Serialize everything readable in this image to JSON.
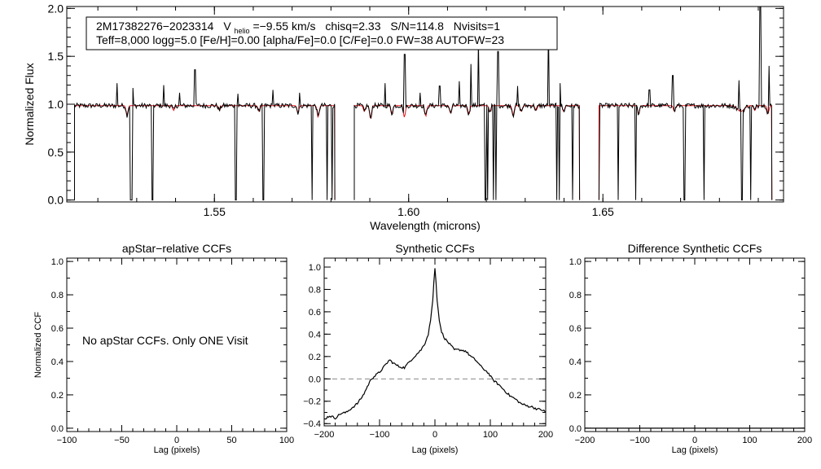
{
  "chart_data": [
    {
      "id": "spectrum",
      "type": "line",
      "title": "",
      "xlabel": "Wavelength (microns)",
      "ylabel": "Normalized Flux",
      "xlim": [
        1.512,
        1.6965
      ],
      "ylim": [
        -0.02,
        2.02
      ],
      "xticks": [
        1.55,
        1.6,
        1.65
      ],
      "xtick_labels": [
        "1.55",
        "1.60",
        "1.65"
      ],
      "yticks": [
        0.0,
        0.5,
        1.0,
        1.5,
        2.0
      ],
      "ytick_labels": [
        "0.0",
        "0.5",
        "1.0",
        "1.5",
        "2.0"
      ],
      "legend_box": {
        "line1": {
          "id": "2M17382276−2023314",
          "vhelio_prefix": "V",
          "vhelio_sub": "helio",
          "vhelio_value": "=−9.55 km/s",
          "chisq": "chisq=2.33",
          "snr": "S/N=114.8",
          "nvisits": "Nvisits=1"
        },
        "line2": "Teff=8,000 logg=5.0 [Fe/H]=0.00 [alpha/Fe]=0.0 [C/Fe]=0.0 FW=38 AUTOFW=23"
      },
      "chips": [
        [
          1.514,
          1.581
        ],
        [
          1.586,
          1.644
        ],
        [
          1.649,
          1.6935
        ]
      ],
      "spikes": [
        [
          1.525,
          1.22
        ],
        [
          1.529,
          1.17
        ],
        [
          1.537,
          1.2
        ],
        [
          1.541,
          1.12
        ],
        [
          1.545,
          1.36
        ],
        [
          1.556,
          1.11
        ],
        [
          1.565,
          1.15
        ],
        [
          1.572,
          1.12
        ],
        [
          1.594,
          1.22
        ],
        [
          1.599,
          1.52
        ],
        [
          1.603,
          1.12
        ],
        [
          1.608,
          1.19
        ],
        [
          1.613,
          1.24
        ],
        [
          1.616,
          1.42
        ],
        [
          1.618,
          1.68
        ],
        [
          1.623,
          1.55
        ],
        [
          1.628,
          1.19
        ],
        [
          1.636,
          1.82
        ],
        [
          1.639,
          1.22
        ],
        [
          1.662,
          1.15
        ],
        [
          1.668,
          1.3
        ],
        [
          1.676,
          1.15
        ],
        [
          1.685,
          1.25
        ],
        [
          1.6905,
          2.02
        ],
        [
          1.6928,
          1.4
        ]
      ],
      "drops": [
        1.5285,
        1.5287,
        1.534,
        1.5342,
        1.5555,
        1.5625,
        1.5627,
        1.5752,
        1.579,
        1.5803,
        1.6198,
        1.6203,
        1.6218,
        1.6224,
        1.6382,
        1.6387,
        1.6422,
        1.6475,
        1.649,
        1.654,
        1.6585,
        1.671,
        1.676,
        1.6858,
        1.688
      ],
      "absorptions": [
        [
          1.5275,
          0.1
        ],
        [
          1.5395,
          0.05
        ],
        [
          1.5513,
          0.05
        ],
        [
          1.5615,
          0.06
        ],
        [
          1.5715,
          0.07
        ],
        [
          1.5767,
          0.12
        ],
        [
          1.5886,
          0.06
        ],
        [
          1.5902,
          0.14
        ],
        [
          1.5957,
          0.08
        ],
        [
          1.5989,
          0.12
        ],
        [
          1.6044,
          0.11
        ],
        [
          1.6108,
          0.08
        ],
        [
          1.6155,
          0.09
        ],
        [
          1.6209,
          0.06
        ],
        [
          1.6269,
          0.1
        ],
        [
          1.629,
          0.06
        ],
        [
          1.6328,
          0.05
        ],
        [
          1.6399,
          0.06
        ],
        [
          1.6592,
          0.08
        ],
        [
          1.6684,
          0.06
        ],
        [
          1.6891,
          0.05
        ],
        [
          1.6925,
          0.08
        ]
      ]
    },
    {
      "id": "apstar_ccf",
      "type": "line",
      "title": "apStar−relative CCFs",
      "xlabel": "Lag (pixels)",
      "ylabel": "Normalized CCF",
      "xlim": [
        -100,
        100
      ],
      "ylim": [
        -0.02,
        1.02
      ],
      "xticks": [
        -100,
        -50,
        0,
        50,
        100
      ],
      "xtick_labels": [
        "−100",
        "−50",
        "0",
        "50",
        "100"
      ],
      "yticks": [
        0.0,
        0.2,
        0.4,
        0.6,
        0.8,
        1.0
      ],
      "ytick_labels": [
        "0.0",
        "0.2",
        "0.4",
        "0.6",
        "0.8",
        "1.0"
      ],
      "annotation": "No apStar CCFs.  Only ONE Visit",
      "series": []
    },
    {
      "id": "synthetic_ccf",
      "type": "line",
      "title": "Synthetic CCFs",
      "xlabel": "Lag (pixels)",
      "ylabel": "",
      "xlim": [
        -200,
        200
      ],
      "ylim": [
        -0.42,
        1.08
      ],
      "xticks": [
        -200,
        -100,
        0,
        100,
        200
      ],
      "xtick_labels": [
        "−200",
        "−100",
        "0",
        "100",
        "200"
      ],
      "yticks": [
        -0.4,
        -0.2,
        0.0,
        0.2,
        0.4,
        0.6,
        0.8,
        1.0
      ],
      "ytick_labels": [
        "−0.4",
        "−0.2",
        "0.0",
        "0.2",
        "0.4",
        "0.6",
        "0.8",
        "1.0"
      ],
      "reference_line_y": 0.0,
      "series": [
        {
          "name": "CCF",
          "x": [
            -200,
            -190,
            -180,
            -170,
            -160,
            -150,
            -140,
            -130,
            -120,
            -115,
            -110,
            -100,
            -90,
            -82,
            -75,
            -65,
            -55,
            -45,
            -35,
            -25,
            -18,
            -12,
            -8,
            -4,
            -2,
            0,
            2,
            4,
            8,
            12,
            18,
            25,
            35,
            45,
            55,
            65,
            75,
            85,
            95,
            105,
            115,
            125,
            135,
            145,
            155,
            165,
            175,
            185,
            195,
            200
          ],
          "y": [
            -0.36,
            -0.33,
            -0.35,
            -0.31,
            -0.3,
            -0.26,
            -0.22,
            -0.15,
            -0.05,
            0.0,
            0.02,
            0.06,
            0.12,
            0.17,
            0.14,
            0.11,
            0.1,
            0.16,
            0.21,
            0.26,
            0.32,
            0.4,
            0.52,
            0.7,
            0.86,
            0.99,
            0.86,
            0.7,
            0.52,
            0.42,
            0.36,
            0.32,
            0.26,
            0.26,
            0.25,
            0.2,
            0.16,
            0.1,
            0.06,
            -0.01,
            -0.05,
            -0.1,
            -0.15,
            -0.18,
            -0.22,
            -0.24,
            -0.25,
            -0.27,
            -0.28,
            -0.3
          ]
        }
      ]
    },
    {
      "id": "difference_ccf",
      "type": "line",
      "title": "Difference Synthetic CCFs",
      "xlabel": "Lag (pixels)",
      "ylabel": "",
      "xlim": [
        -200,
        200
      ],
      "ylim": [
        -0.02,
        1.02
      ],
      "xticks": [
        -200,
        -100,
        0,
        100,
        200
      ],
      "xtick_labels": [
        "−200",
        "−100",
        "0",
        "100",
        "200"
      ],
      "yticks": [
        0.0,
        0.2,
        0.4,
        0.6,
        0.8,
        1.0
      ],
      "ytick_labels": [
        "0.0",
        "0.2",
        "0.4",
        "0.6",
        "0.8",
        "1.0"
      ],
      "series": [
        {
          "name": "difference",
          "x": [
            -200,
            200
          ],
          "y": [
            0.0,
            0.0
          ]
        }
      ]
    }
  ]
}
